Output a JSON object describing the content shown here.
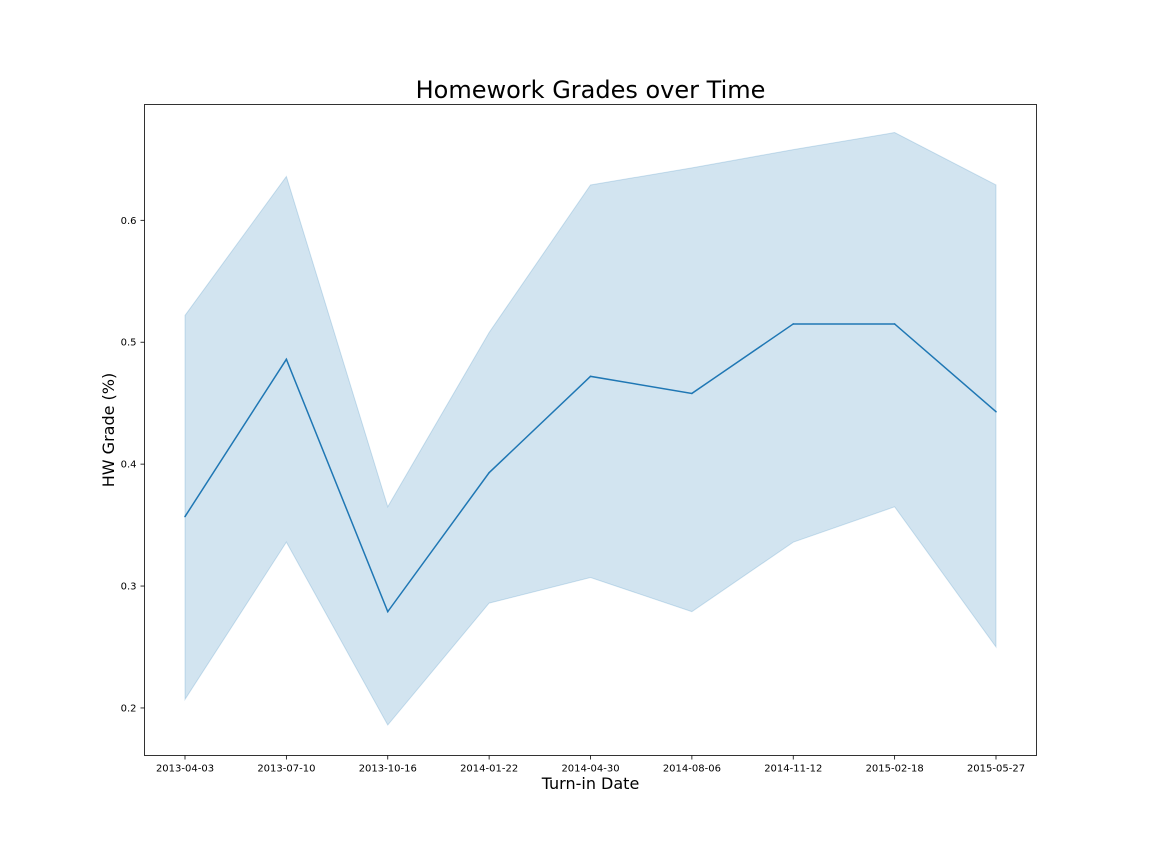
{
  "chart_data": {
    "type": "line",
    "title": "Homework Grades over Time",
    "xlabel": "Turn-in Date",
    "ylabel": "HW Grade (%)",
    "x": [
      "2013-04-03",
      "2013-07-10",
      "2013-10-16",
      "2014-01-22",
      "2014-04-30",
      "2014-08-06",
      "2014-11-12",
      "2015-02-18",
      "2015-05-27"
    ],
    "yticks": [
      "0.2",
      "0.3",
      "0.4",
      "0.5",
      "0.6"
    ],
    "ylim": [
      0.161,
      0.695
    ],
    "series": [
      {
        "values": [
          0.357,
          0.486,
          0.279,
          0.393,
          0.472,
          0.458,
          0.515,
          0.515,
          0.443
        ],
        "band_upper": [
          0.522,
          0.636,
          0.365,
          0.508,
          0.629,
          0.643,
          0.658,
          0.672,
          0.629
        ],
        "band_lower": [
          0.207,
          0.336,
          0.186,
          0.286,
          0.307,
          0.279,
          0.336,
          0.365,
          0.25
        ],
        "color": "#1f77b4",
        "band_color": "#1f77b4",
        "band_opacity": 0.2
      }
    ],
    "grid": false,
    "legend": false
  }
}
